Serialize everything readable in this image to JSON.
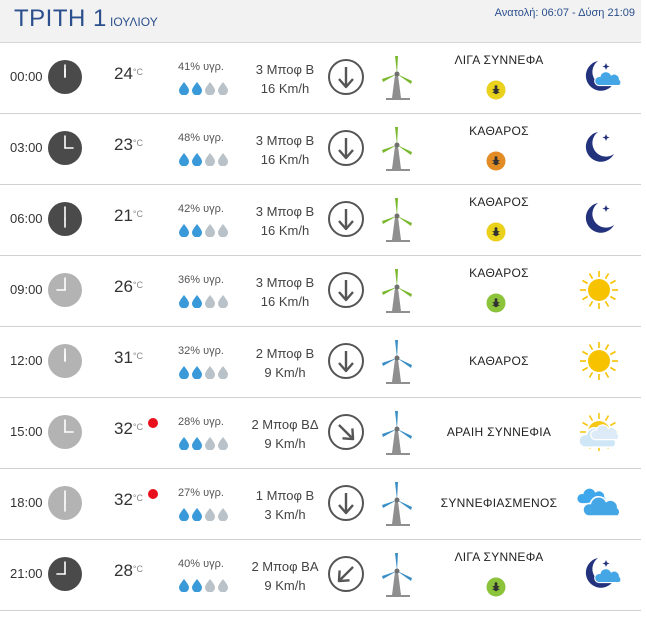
{
  "header": {
    "day": "ΤΡΙΤΗ 1",
    "month": "ΙΟΥΛΙΟΥ",
    "sun_times": "Ανατολή: 06:07  - Δύση 21:09"
  },
  "temp_unit": "°C",
  "rows": [
    {
      "time": "00:00",
      "clock": "night",
      "temp": "24",
      "hot": false,
      "humidity": "41% υγρ.",
      "drops_filled": 2,
      "wind_beaufort": "3 Μποφ Β",
      "wind_speed": "16 Km/h",
      "wind_dir": "down",
      "turbine": "green",
      "condition": "ΛΙΓΑ ΣΥΝΝΕΦΑ",
      "cond_offset": "top",
      "uv": "yellow",
      "icon": "moon-cloud"
    },
    {
      "time": "03:00",
      "clock": "night",
      "temp": "23",
      "hot": false,
      "humidity": "48% υγρ.",
      "drops_filled": 2,
      "wind_beaufort": "3 Μποφ Β",
      "wind_speed": "16 Km/h",
      "wind_dir": "down",
      "turbine": "green",
      "condition": "ΚΑΘΑΡΟΣ",
      "cond_offset": "top",
      "uv": "orange",
      "icon": "moon"
    },
    {
      "time": "06:00",
      "clock": "night",
      "temp": "21",
      "hot": false,
      "humidity": "42% υγρ.",
      "drops_filled": 2,
      "wind_beaufort": "3 Μποφ Β",
      "wind_speed": "16 Km/h",
      "wind_dir": "down",
      "turbine": "green",
      "condition": "ΚΑΘΑΡΟΣ",
      "cond_offset": "top",
      "uv": "yellow",
      "icon": "moon"
    },
    {
      "time": "09:00",
      "clock": "day",
      "temp": "26",
      "hot": false,
      "humidity": "36% υγρ.",
      "drops_filled": 2,
      "wind_beaufort": "3 Μποφ Β",
      "wind_speed": "16 Km/h",
      "wind_dir": "down",
      "turbine": "green",
      "condition": "ΚΑΘΑΡΟΣ",
      "cond_offset": "top",
      "uv": "green",
      "icon": "sun"
    },
    {
      "time": "12:00",
      "clock": "day",
      "temp": "31",
      "hot": false,
      "humidity": "32% υγρ.",
      "drops_filled": 2,
      "wind_beaufort": "2 Μποφ Β",
      "wind_speed": "9 Km/h",
      "wind_dir": "down",
      "turbine": "blue",
      "condition": "ΚΑΘΑΡΟΣ",
      "cond_offset": "mid",
      "uv": "none",
      "icon": "sun"
    },
    {
      "time": "15:00",
      "clock": "day",
      "temp": "32",
      "hot": true,
      "humidity": "28% υγρ.",
      "drops_filled": 2,
      "wind_beaufort": "2 Μποφ ΒΔ",
      "wind_speed": "9 Km/h",
      "wind_dir": "down-right",
      "turbine": "blue",
      "condition": "ΑΡΑΙΗ ΣΥΝΝΕΦΙΑ",
      "cond_offset": "mid",
      "uv": "none",
      "icon": "sun-cloud"
    },
    {
      "time": "18:00",
      "clock": "day",
      "temp": "32",
      "hot": true,
      "humidity": "27% υγρ.",
      "drops_filled": 2,
      "wind_beaufort": "1 Μποφ Β",
      "wind_speed": "3 Km/h",
      "wind_dir": "down",
      "turbine": "blue",
      "condition": "ΣΥΝΝΕΦΙΑΣΜΕΝΟΣ",
      "cond_offset": "mid",
      "uv": "none",
      "icon": "cloud"
    },
    {
      "time": "21:00",
      "clock": "night",
      "temp": "28",
      "hot": false,
      "humidity": "40% υγρ.",
      "drops_filled": 2,
      "wind_beaufort": "2 Μποφ ΒΑ",
      "wind_speed": "9 Km/h",
      "wind_dir": "down-left",
      "turbine": "blue",
      "condition": "ΛΙΓΑ ΣΥΝΝΕΦΑ",
      "cond_offset": "top",
      "uv": "green",
      "icon": "moon-cloud"
    }
  ],
  "colors": {
    "title_blue": "#2a4f8c",
    "night_clock": "#4a4a4a",
    "day_clock": "#b3b3b3",
    "drop_filled": "#3a9ad9",
    "drop_empty": "#b9c2c8",
    "turbine_green": "#7ab92f",
    "turbine_blue": "#3b8fc4",
    "moon": "#23327d",
    "sun": "#f7c200",
    "cloud": "#45a6e6",
    "hot_dot": "#e8101b",
    "uv_yellow": "#e9d11c",
    "uv_orange": "#e38b25",
    "uv_green": "#8bc33a"
  }
}
